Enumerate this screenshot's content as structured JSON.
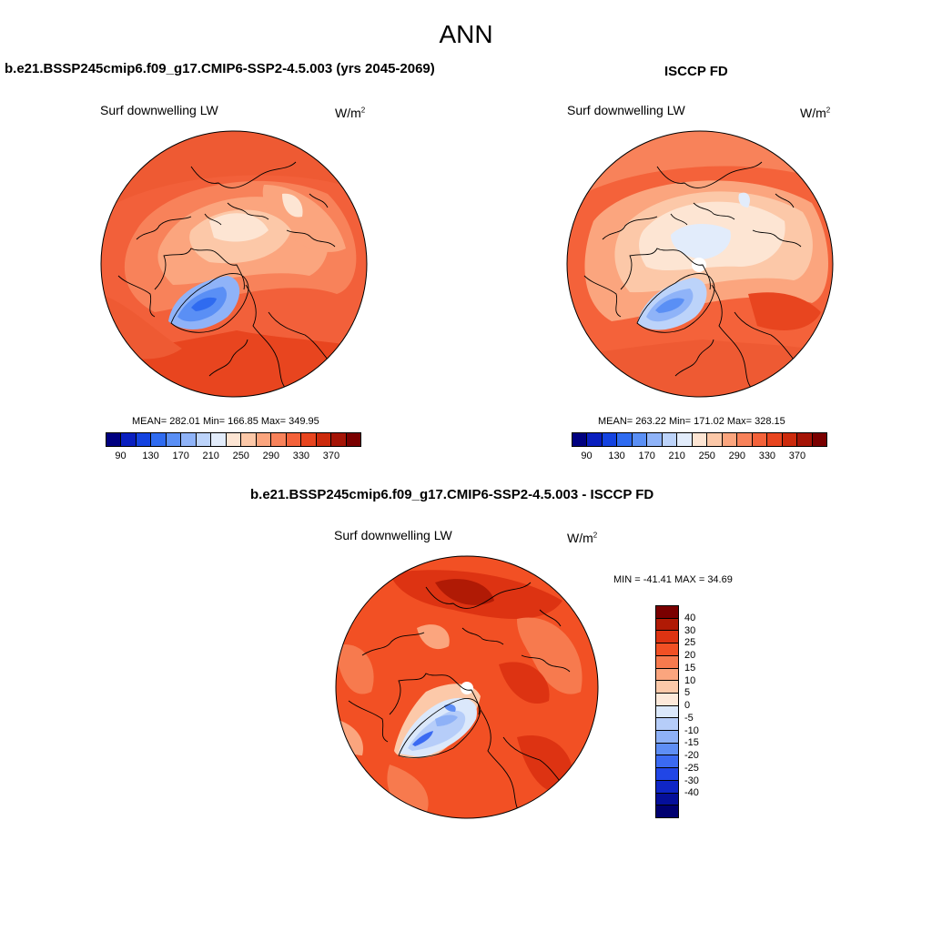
{
  "title": "ANN",
  "panels": [
    {
      "header": "b.e21.BSSP245cmip6.f09_g17.CMIP6-SSP2-4.5.003 (yrs 2045-2069)",
      "label": "Surf downwelling LW",
      "units_base": "W/m",
      "units_exp": "2",
      "stats": "MEAN= 282.01  Min= 166.85  Max= 349.95"
    },
    {
      "header": "ISCCP FD",
      "label": "Surf downwelling LW",
      "units_base": "W/m",
      "units_exp": "2",
      "stats": "MEAN= 263.22  Min= 171.02  Max= 328.15"
    }
  ],
  "diff": {
    "header": "b.e21.BSSP245cmip6.f09_g17.CMIP6-SSP2-4.5.003 - ISCCP FD",
    "label": "Surf downwelling LW",
    "units_base": "W/m",
    "units_exp": "2",
    "stats": "MIN = -41.41 MAX =  34.69"
  },
  "colorbar_main": {
    "colors": [
      "#000080",
      "#0a1fbf",
      "#1443e0",
      "#2f6bf0",
      "#5a8ff5",
      "#8fb3f8",
      "#bcd3fa",
      "#e2ecfb",
      "#fde5d3",
      "#fcc8a8",
      "#fba57e",
      "#f8825a",
      "#f4623a",
      "#e8451f",
      "#cc2a0c",
      "#a51406",
      "#7a0000"
    ],
    "ticks": [
      "90",
      "130",
      "170",
      "210",
      "250",
      "290",
      "330",
      "370"
    ]
  },
  "colorbar_diff": {
    "colors": [
      "#7a0000",
      "#b01a05",
      "#dd3312",
      "#f25024",
      "#f77a4e",
      "#fba57e",
      "#fcc9a9",
      "#fde9da",
      "#dbe8fb",
      "#b6cdf9",
      "#8eb1f7",
      "#5e8ef5",
      "#3b6af2",
      "#2146e6",
      "#0f26c6",
      "#050f9a",
      "#000070"
    ],
    "ticks": [
      "40",
      "30",
      "25",
      "20",
      "15",
      "10",
      "5",
      "0",
      "-5",
      "-10",
      "-15",
      "-20",
      "-25",
      "-30",
      "-40"
    ]
  }
}
